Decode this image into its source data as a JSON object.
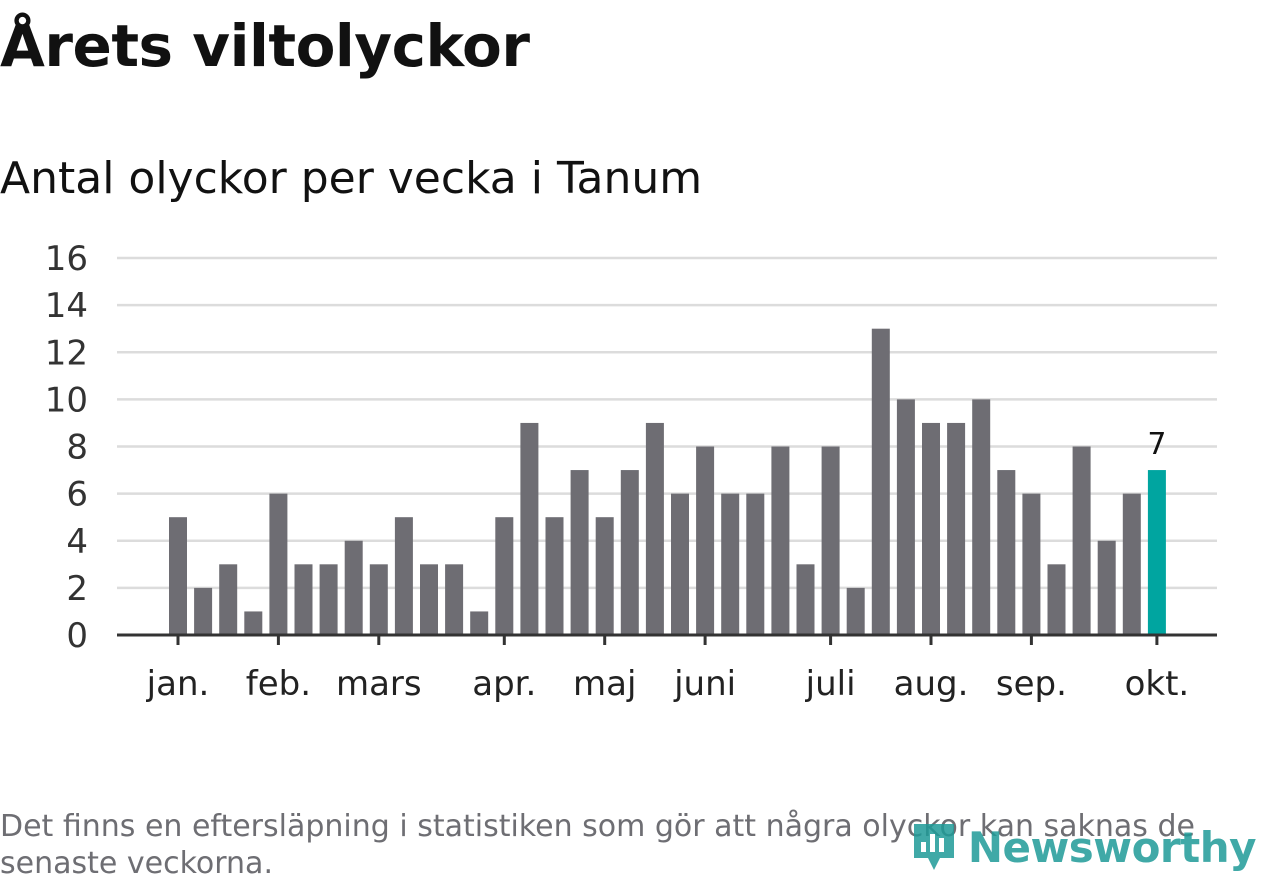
{
  "title": "Årets viltolyckor",
  "subtitle": "Antal olyckor per vecka i Tanum",
  "footnote": "Det finns en eftersläpning i statistiken som gör att några olyckor kan saknas de senaste veckorna.",
  "brand": {
    "name": "Newsworthy",
    "logo_icon": "chart-pin-icon",
    "color": "#1f9b98"
  },
  "colors": {
    "bar": "#6e6d73",
    "highlight": "#00a5a0",
    "grid": "#dcdcdc",
    "axis": "#333333"
  },
  "chart_data": {
    "type": "bar",
    "xlabel": "",
    "ylabel": "",
    "ylim": [
      0,
      16
    ],
    "yticks": [
      "0",
      "2",
      "4",
      "6",
      "8",
      "10",
      "12",
      "14",
      "16"
    ],
    "grid": true,
    "values": [
      5,
      2,
      3,
      1,
      6,
      3,
      3,
      4,
      3,
      5,
      3,
      3,
      1,
      5,
      9,
      5,
      7,
      5,
      7,
      9,
      6,
      8,
      6,
      6,
      8,
      3,
      8,
      2,
      13,
      10,
      9,
      9,
      10,
      7,
      6,
      3,
      8,
      4,
      6,
      7
    ],
    "month_labels": [
      {
        "label": "jan.",
        "week": 1
      },
      {
        "label": "feb.",
        "week": 5
      },
      {
        "label": "mars",
        "week": 9
      },
      {
        "label": "apr.",
        "week": 14
      },
      {
        "label": "maj",
        "week": 18
      },
      {
        "label": "juni",
        "week": 22
      },
      {
        "label": "juli",
        "week": 27
      },
      {
        "label": "aug.",
        "week": 31
      },
      {
        "label": "sep.",
        "week": 35
      },
      {
        "label": "okt.",
        "week": 40
      }
    ],
    "highlight_index": 39,
    "highlight_label": "7"
  }
}
